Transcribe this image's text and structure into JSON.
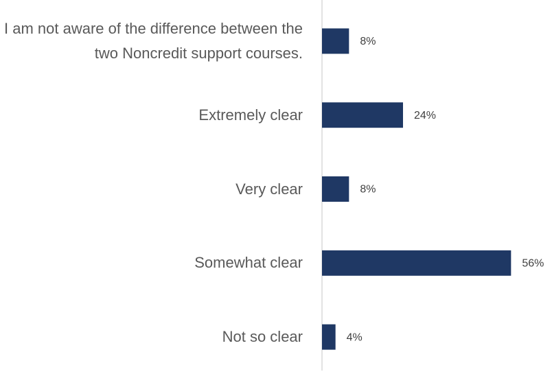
{
  "chart_data": {
    "type": "barh",
    "categories": [
      "I am not aware of the difference between the two Noncredit support courses.",
      "Extremely clear",
      "Very clear",
      "Somewhat clear",
      "Not so clear"
    ],
    "values": [
      8,
      24,
      8,
      56,
      4
    ],
    "value_labels": [
      "8%",
      "24%",
      "8%",
      "56%",
      "4%"
    ],
    "color": "#1f3864",
    "xlim": [
      0,
      60
    ]
  }
}
